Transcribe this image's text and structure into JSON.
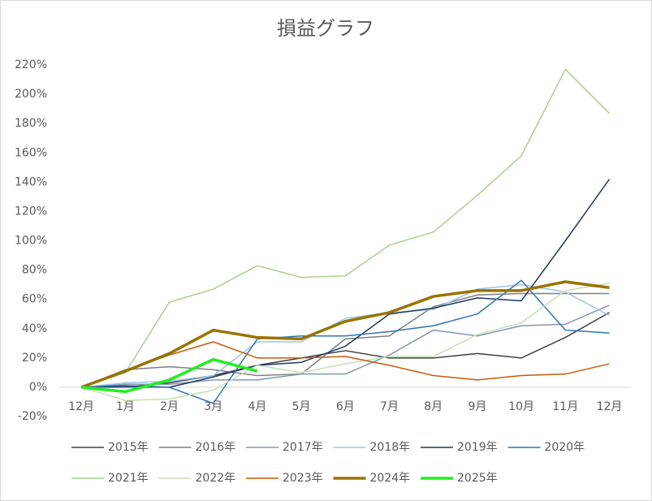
{
  "chart_data": {
    "type": "line",
    "title": "損益グラフ",
    "categories": [
      "12月",
      "1月",
      "2月",
      "3月",
      "4月",
      "5月",
      "6月",
      "7月",
      "8月",
      "9月",
      "10月",
      "11月",
      "12月"
    ],
    "ylim": [
      -20,
      220
    ],
    "yticks": [
      {
        "value": -20,
        "label": "-20%"
      },
      {
        "value": 0,
        "label": "0%"
      },
      {
        "value": 20,
        "label": "20%"
      },
      {
        "value": 40,
        "label": "40%"
      },
      {
        "value": 60,
        "label": "60%"
      },
      {
        "value": 80,
        "label": "80%"
      },
      {
        "value": 100,
        "label": "100%"
      },
      {
        "value": 120,
        "label": "120%"
      },
      {
        "value": 140,
        "label": "140%"
      },
      {
        "value": 160,
        "label": "160%"
      },
      {
        "value": 180,
        "label": "180%"
      },
      {
        "value": 200,
        "label": "200%"
      },
      {
        "value": 220,
        "label": "220%"
      }
    ],
    "grid": false,
    "legend": "bottom",
    "series": [
      {
        "name": "2015年",
        "color": "#404040",
        "line_width": 1.5,
        "values": [
          0,
          0,
          3,
          8,
          15,
          20,
          25,
          20,
          20,
          23,
          20,
          34,
          51
        ]
      },
      {
        "name": "2016年",
        "color": "#7f7f7f",
        "line_width": 1.5,
        "values": [
          0,
          12,
          14,
          12,
          8,
          9,
          33,
          35,
          55,
          63,
          64,
          64,
          64
        ]
      },
      {
        "name": "2017年",
        "color": "#8497b0",
        "line_width": 1.5,
        "values": [
          0,
          2,
          2,
          5,
          5,
          9,
          9,
          22,
          39,
          35,
          42,
          43,
          56
        ]
      },
      {
        "name": "2018年",
        "color": "#9dc3e6",
        "line_width": 1.5,
        "values": [
          0,
          3,
          4,
          8,
          31,
          31,
          47,
          51,
          53,
          67,
          70,
          65,
          49
        ]
      },
      {
        "name": "2019年",
        "color": "#1f3864",
        "line_width": 1.5,
        "values": [
          0,
          1,
          0,
          7,
          15,
          17,
          28,
          50,
          54,
          61,
          59,
          100,
          142
        ]
      },
      {
        "name": "2020年",
        "color": "#2e75b6",
        "line_width": 1.5,
        "values": [
          0,
          0,
          0,
          -11,
          33,
          35,
          35,
          38,
          42,
          50,
          73,
          39,
          37
        ]
      },
      {
        "name": "2021年",
        "color": "#a9d18e",
        "line_width": 1.5,
        "values": [
          0,
          10,
          58,
          67,
          83,
          75,
          76,
          97,
          106,
          131,
          158,
          217,
          187
        ]
      },
      {
        "name": "2022年",
        "color": "#c5e0b4",
        "line_width": 1.5,
        "values": [
          0,
          -9,
          -8,
          -2,
          15,
          10,
          16,
          21,
          21,
          36,
          44,
          66,
          71
        ]
      },
      {
        "name": "2023年",
        "color": "#c55a11",
        "line_width": 1.5,
        "values": [
          0,
          11,
          22,
          31,
          20,
          20,
          21,
          15,
          8,
          5,
          8,
          9,
          16
        ]
      },
      {
        "name": "2024年",
        "color": "#997300",
        "line_width": 3.5,
        "values": [
          0,
          11,
          23,
          39,
          34,
          33,
          45,
          51,
          62,
          66,
          66,
          72,
          68
        ]
      },
      {
        "name": "2025年",
        "color": "#22ee22",
        "line_width": 3.5,
        "values": [
          0,
          -3,
          5,
          19,
          11,
          null,
          null,
          null,
          null,
          null,
          null,
          null,
          null
        ]
      }
    ]
  }
}
